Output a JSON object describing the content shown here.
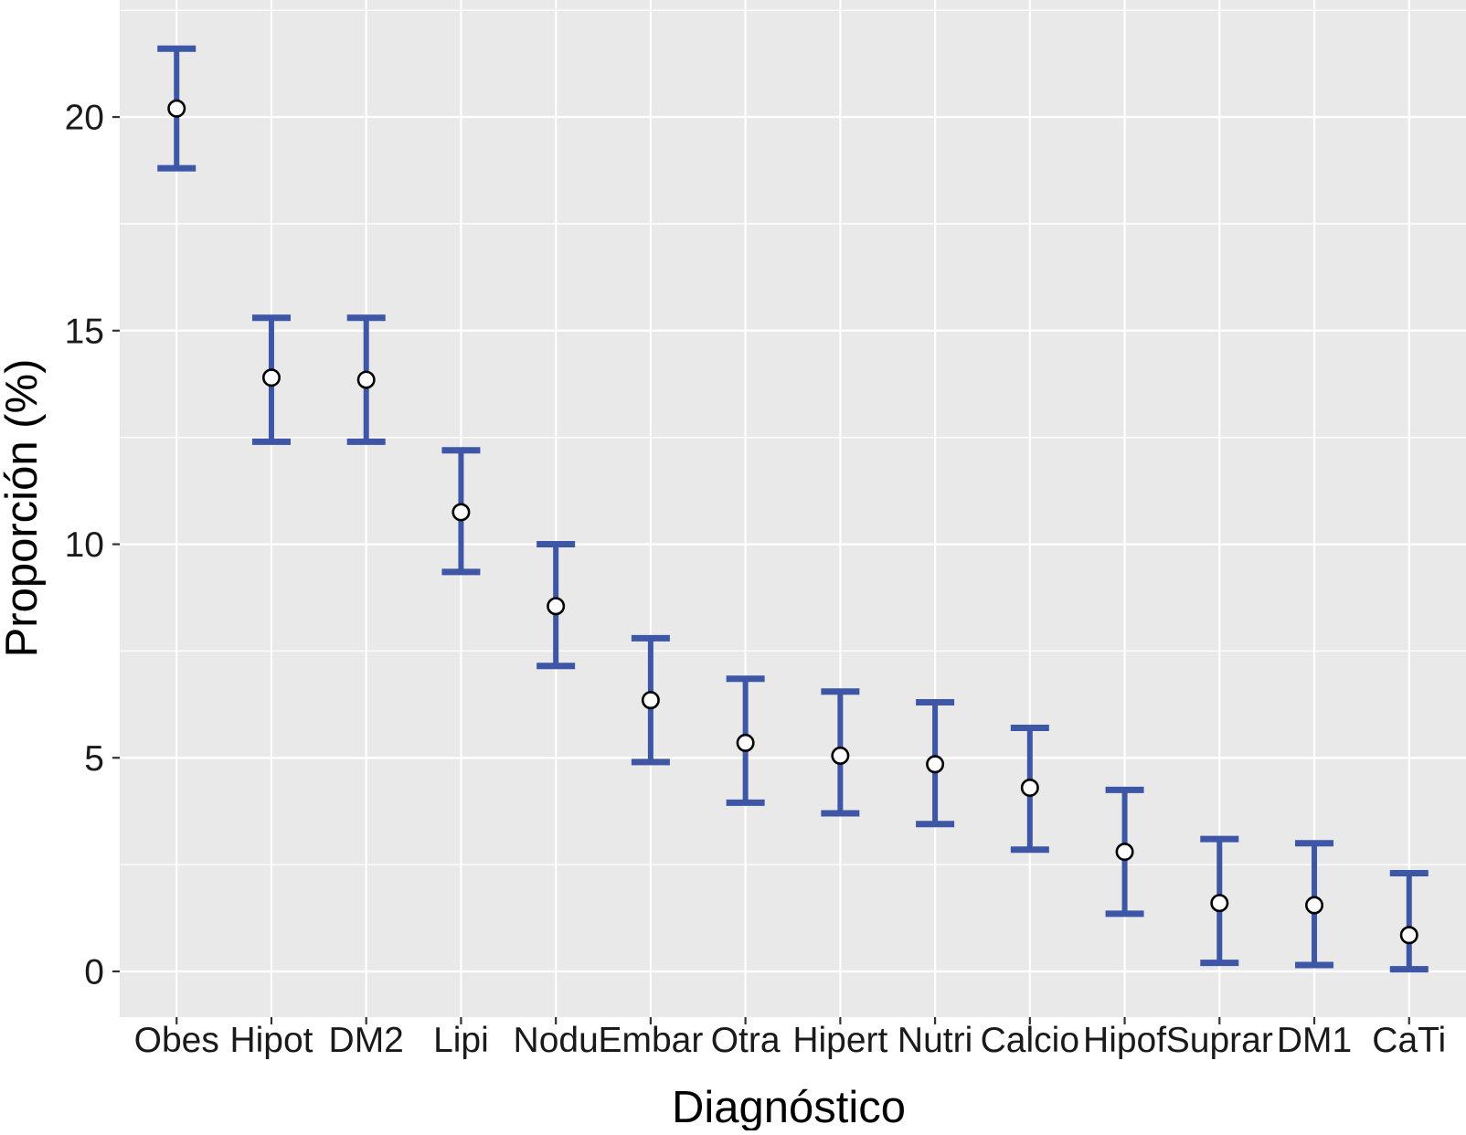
{
  "figure": {
    "description": "Point estimates with confidence-interval error bars per diagnosis category"
  },
  "chart_data": {
    "type": "scatter",
    "subtype": "point-with-errorbars",
    "title": "",
    "xlabel": "Diagnóstico",
    "ylabel": "Proporción (%)",
    "categories": [
      "Obes",
      "Hipot",
      "DM2",
      "Lipi",
      "Nodu",
      "Embar",
      "Otra",
      "Hipert",
      "Nutri",
      "Calcio",
      "Hipof",
      "Suprar",
      "DM1",
      "CaTi"
    ],
    "series": [
      {
        "name": "Proporción",
        "values": [
          20.2,
          13.9,
          13.85,
          10.75,
          8.55,
          6.35,
          5.35,
          5.05,
          4.85,
          4.3,
          2.8,
          1.6,
          1.55,
          0.85
        ],
        "lower": [
          18.8,
          12.4,
          12.4,
          9.35,
          7.15,
          4.9,
          3.95,
          3.7,
          3.45,
          2.85,
          1.35,
          0.2,
          0.15,
          0.05
        ],
        "upper": [
          21.6,
          15.3,
          15.3,
          12.2,
          10.0,
          7.8,
          6.85,
          6.55,
          6.3,
          5.7,
          4.25,
          3.1,
          3.0,
          2.3
        ]
      }
    ],
    "yticks": [
      0,
      5,
      10,
      15,
      20
    ],
    "ytick_labels": [
      "0",
      "5",
      "10",
      "15",
      "20"
    ],
    "ylim": [
      -1.07,
      22.74
    ],
    "grid": "horizontal major+minor and vertical category gridlines, white on gray panel",
    "legend_position": "none"
  },
  "style": {
    "panel_bg": "#e9e9e9",
    "grid_color": "#ffffff",
    "errorbar_color": "#3d56a6",
    "point_fill": "#ffffff",
    "point_stroke": "#000000",
    "tick_color": "#333333",
    "text_color": "#000000"
  }
}
